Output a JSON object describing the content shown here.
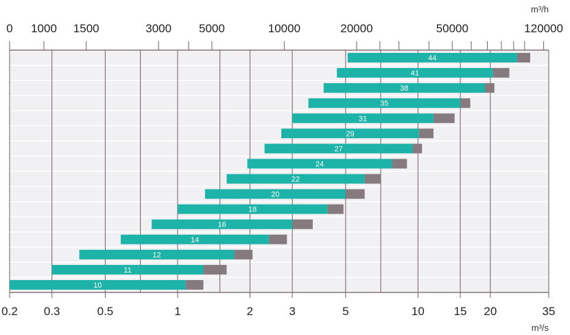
{
  "chart_data": {
    "type": "bar",
    "orientation": "horizontal",
    "x_scale": "log",
    "xlim": [
      0.2,
      35
    ],
    "top_axis": {
      "unit": "m³/h",
      "tick_labels": [
        "0",
        "1000",
        "1500",
        "3000",
        "5000",
        "10000",
        "20000",
        "50000",
        "120000"
      ],
      "label_values_m3s": [
        0.2,
        0.2778,
        0.4167,
        0.8333,
        1.3889,
        2.7778,
        5.5556,
        13.8889,
        33.3333
      ],
      "minor_tick_values_m3h": [
        4000,
        25000,
        30000,
        40000,
        60000,
        70000,
        80000,
        90000,
        100000
      ]
    },
    "bottom_axis": {
      "unit": "m³/s",
      "tick_labels": [
        "0.2",
        "0.3",
        "0.5",
        "1",
        "2",
        "3",
        "5",
        "10",
        "15",
        "20",
        "35"
      ],
      "tick_values": [
        0.2,
        0.3,
        0.5,
        1,
        2,
        3,
        5,
        10,
        15,
        20,
        35
      ],
      "gridline_values": [
        0.3,
        0.5,
        0.7,
        1,
        1.5,
        2,
        3,
        5,
        7,
        10,
        15,
        20
      ]
    },
    "colors": {
      "range": "#1eb3a8",
      "extension": "#857a7d",
      "plot_background": "#f1f1f3",
      "row_line": "#ffffff",
      "gridline": "#6e5d60"
    },
    "series": [
      {
        "name": "",
        "start": 0.2,
        "mid": 1.08,
        "end": 1.28
      },
      {
        "name": "",
        "start": 0.3,
        "mid": 1.28,
        "end": 1.6
      },
      {
        "name": "",
        "start": 0.39,
        "mid": 1.72,
        "end": 2.05
      },
      {
        "name": "",
        "start": 0.58,
        "mid": 2.4,
        "end": 2.85
      },
      {
        "name": "",
        "start": 0.78,
        "mid": 3.0,
        "end": 3.65
      },
      {
        "name": "",
        "start": 1.0,
        "mid": 4.2,
        "end": 4.9
      },
      {
        "name": "",
        "start": 1.3,
        "mid": 5.0,
        "end": 6.0
      },
      {
        "name": "",
        "start": 1.6,
        "mid": 6.0,
        "end": 7.0
      },
      {
        "name": "",
        "start": 1.95,
        "mid": 7.8,
        "end": 9.0
      },
      {
        "name": "",
        "start": 2.3,
        "mid": 9.5,
        "end": 10.4
      },
      {
        "name": "",
        "start": 2.7,
        "mid": 10.1,
        "end": 11.6
      },
      {
        "name": "",
        "start": 3.0,
        "mid": 11.6,
        "end": 14.2
      },
      {
        "name": "",
        "start": 3.5,
        "mid": 15.0,
        "end": 16.5
      },
      {
        "name": "",
        "start": 4.05,
        "mid": 19.0,
        "end": 20.8
      },
      {
        "name": "",
        "start": 4.6,
        "mid": 20.5,
        "end": 24.0
      },
      {
        "name": "",
        "start": 5.1,
        "mid": 25.8,
        "end": 29.3
      }
    ],
    "bar_labels": [
      "10",
      "11",
      "12",
      "14",
      "16",
      "18",
      "20",
      "22",
      "24",
      "27",
      "29",
      "31",
      "35",
      "38",
      "41",
      "44"
    ]
  }
}
